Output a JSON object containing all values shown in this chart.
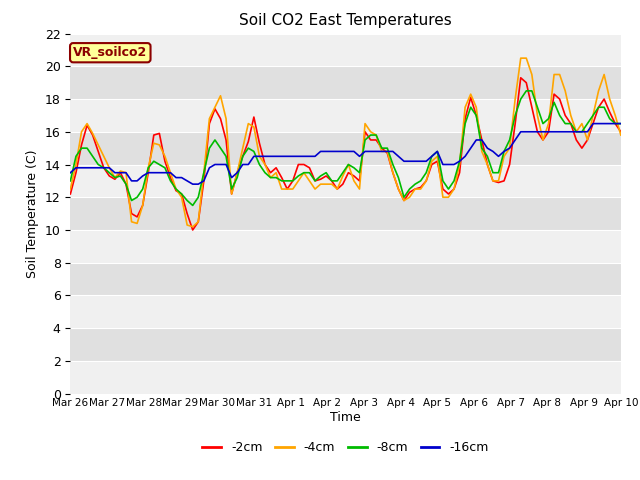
{
  "title": "Soil CO2 East Temperatures",
  "xlabel": "Time",
  "ylabel": "Soil Temperature (C)",
  "ylim": [
    0,
    22
  ],
  "fig_bg_color": "#ffffff",
  "plot_bg_color_light": "#f0f0f0",
  "plot_bg_color_dark": "#e0e0e0",
  "grid_color": "#ffffff",
  "label_box_text": "VR_soilco2",
  "label_box_bg": "#ffff99",
  "label_box_edge": "#8b0000",
  "xtick_labels": [
    "Mar 26",
    "Mar 27",
    "Mar 28",
    "Mar 29",
    "Mar 30",
    "Mar 31",
    "Apr 1",
    "Apr 2",
    "Apr 3",
    "Apr 4",
    "Apr 5",
    "Apr 6",
    "Apr 7",
    "Apr 8",
    "Apr 9",
    "Apr 10"
  ],
  "line_colors": [
    "#ff0000",
    "#ffa500",
    "#00bb00",
    "#0000cc"
  ],
  "line_labels": [
    "-2cm",
    "-4cm",
    "-8cm",
    "-16cm"
  ],
  "line_width": 1.2,
  "t_2cm": [
    12.2,
    13.5,
    15.2,
    16.4,
    15.8,
    14.8,
    13.8,
    13.3,
    13.1,
    13.5,
    12.8,
    11.0,
    10.8,
    11.5,
    13.5,
    15.8,
    15.9,
    14.2,
    13.2,
    12.4,
    12.2,
    11.0,
    10.0,
    10.5,
    13.0,
    16.5,
    17.4,
    16.8,
    15.5,
    12.2,
    13.5,
    14.5,
    15.4,
    16.9,
    15.3,
    14.0,
    13.5,
    13.8,
    13.2,
    12.5,
    13.0,
    14.0,
    14.0,
    13.8,
    13.0,
    13.1,
    13.3,
    13.0,
    12.5,
    12.8,
    13.5,
    13.3,
    13.0,
    16.0,
    15.5,
    15.5,
    15.0,
    14.7,
    13.5,
    12.5,
    11.8,
    12.3,
    12.5,
    12.6,
    13.0,
    14.0,
    14.2,
    12.5,
    12.2,
    12.5,
    13.5,
    16.8,
    18.1,
    17.0,
    15.5,
    14.0,
    13.0,
    12.9,
    13.0,
    14.0,
    16.5,
    19.3,
    19.0,
    17.5,
    16.0,
    15.5,
    16.0,
    18.3,
    18.0,
    17.0,
    16.5,
    15.5,
    15.0,
    15.5,
    16.5,
    17.5,
    18.0,
    17.2,
    16.5,
    16.0
  ],
  "t_4cm": [
    12.5,
    14.0,
    16.0,
    16.5,
    15.9,
    15.2,
    14.5,
    13.8,
    13.2,
    13.6,
    13.5,
    10.5,
    10.4,
    11.5,
    13.8,
    15.3,
    15.2,
    14.5,
    13.5,
    12.5,
    12.0,
    10.3,
    10.2,
    10.5,
    13.5,
    16.8,
    17.5,
    18.2,
    16.8,
    12.2,
    13.5,
    15.0,
    16.5,
    16.3,
    14.5,
    14.0,
    13.2,
    13.5,
    12.5,
    12.5,
    12.5,
    13.0,
    13.5,
    13.0,
    12.5,
    12.8,
    12.8,
    12.8,
    12.5,
    13.3,
    14.0,
    13.0,
    12.5,
    16.5,
    16.0,
    15.8,
    14.8,
    14.8,
    13.5,
    12.5,
    11.8,
    12.0,
    12.5,
    12.5,
    13.0,
    14.2,
    14.5,
    12.0,
    12.0,
    12.5,
    14.0,
    17.5,
    18.3,
    17.5,
    14.8,
    14.0,
    13.0,
    13.0,
    14.5,
    15.0,
    18.0,
    20.5,
    20.5,
    19.5,
    17.0,
    15.5,
    16.5,
    19.5,
    19.5,
    18.5,
    17.0,
    16.0,
    16.5,
    15.5,
    17.0,
    18.5,
    19.5,
    18.0,
    17.0,
    15.8
  ],
  "t_8cm": [
    13.0,
    14.5,
    15.0,
    15.0,
    14.5,
    14.0,
    13.8,
    13.5,
    13.2,
    13.3,
    12.8,
    11.8,
    12.0,
    12.5,
    13.8,
    14.2,
    14.0,
    13.8,
    13.0,
    12.5,
    12.2,
    11.8,
    11.5,
    12.0,
    13.5,
    15.0,
    15.5,
    15.0,
    14.5,
    12.5,
    13.2,
    14.5,
    15.0,
    14.8,
    14.0,
    13.5,
    13.2,
    13.2,
    13.0,
    13.0,
    13.0,
    13.3,
    13.5,
    13.5,
    13.0,
    13.3,
    13.5,
    13.0,
    13.0,
    13.5,
    14.0,
    13.8,
    13.5,
    15.5,
    15.8,
    15.8,
    15.0,
    15.0,
    14.0,
    13.2,
    12.0,
    12.5,
    12.8,
    13.0,
    13.5,
    14.5,
    14.8,
    13.0,
    12.5,
    13.0,
    14.2,
    16.5,
    17.5,
    17.0,
    15.0,
    14.5,
    13.5,
    13.5,
    14.8,
    15.5,
    17.0,
    18.0,
    18.5,
    18.5,
    17.5,
    16.5,
    16.8,
    17.8,
    17.0,
    16.5,
    16.5,
    16.0,
    16.0,
    16.5,
    17.0,
    17.5,
    17.5,
    16.8,
    16.5,
    16.5
  ],
  "t_16cm": [
    13.5,
    13.8,
    13.8,
    13.8,
    13.8,
    13.8,
    13.8,
    13.8,
    13.5,
    13.5,
    13.5,
    13.0,
    13.0,
    13.3,
    13.5,
    13.5,
    13.5,
    13.5,
    13.5,
    13.2,
    13.2,
    13.0,
    12.8,
    12.8,
    13.0,
    13.8,
    14.0,
    14.0,
    14.0,
    13.2,
    13.5,
    14.0,
    14.0,
    14.5,
    14.5,
    14.5,
    14.5,
    14.5,
    14.5,
    14.5,
    14.5,
    14.5,
    14.5,
    14.5,
    14.5,
    14.8,
    14.8,
    14.8,
    14.8,
    14.8,
    14.8,
    14.8,
    14.5,
    14.8,
    14.8,
    14.8,
    14.8,
    14.8,
    14.8,
    14.5,
    14.2,
    14.2,
    14.2,
    14.2,
    14.2,
    14.5,
    14.8,
    14.0,
    14.0,
    14.0,
    14.2,
    14.5,
    15.0,
    15.5,
    15.5,
    15.0,
    14.8,
    14.5,
    14.8,
    15.0,
    15.5,
    16.0,
    16.0,
    16.0,
    16.0,
    16.0,
    16.0,
    16.0,
    16.0,
    16.0,
    16.0,
    16.0,
    16.0,
    16.0,
    16.5,
    16.5,
    16.5,
    16.5,
    16.5,
    16.5
  ]
}
